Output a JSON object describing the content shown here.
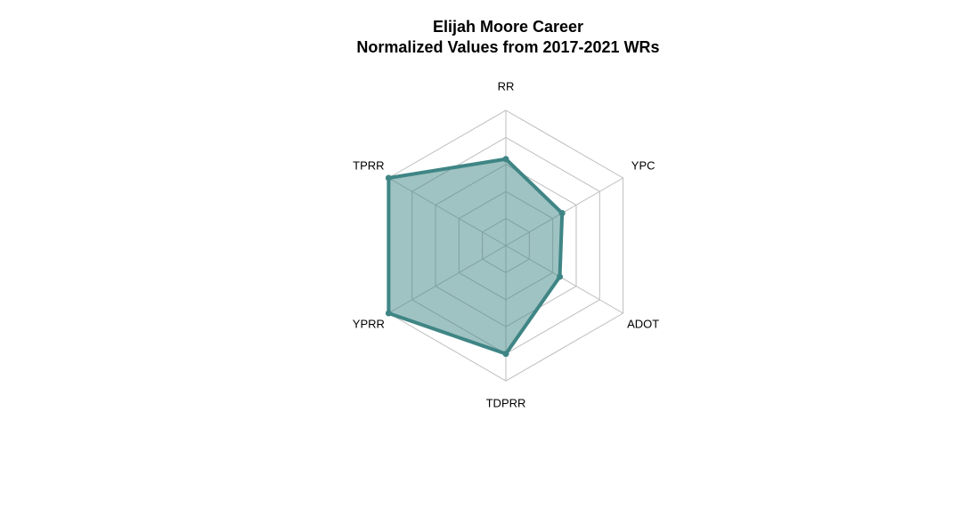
{
  "chart_data": {
    "type": "radar",
    "title_line1": "Elijah Moore Career",
    "title_line2": "Normalized Values from 2017-2021 WRs",
    "axes": [
      "RR",
      "YPC",
      "ADOT",
      "TDPRR",
      "YPRR",
      "TPRR"
    ],
    "series": [
      {
        "values": [
          0.64,
          0.48,
          0.46,
          0.8,
          1.0,
          1.0
        ]
      }
    ],
    "rlim": [
      0,
      1
    ],
    "grid_levels": 5,
    "grid": true,
    "legend": false,
    "colors": {
      "line": "#3f8585",
      "fill": "#3f8585",
      "grid": "#bdbdbd"
    }
  }
}
